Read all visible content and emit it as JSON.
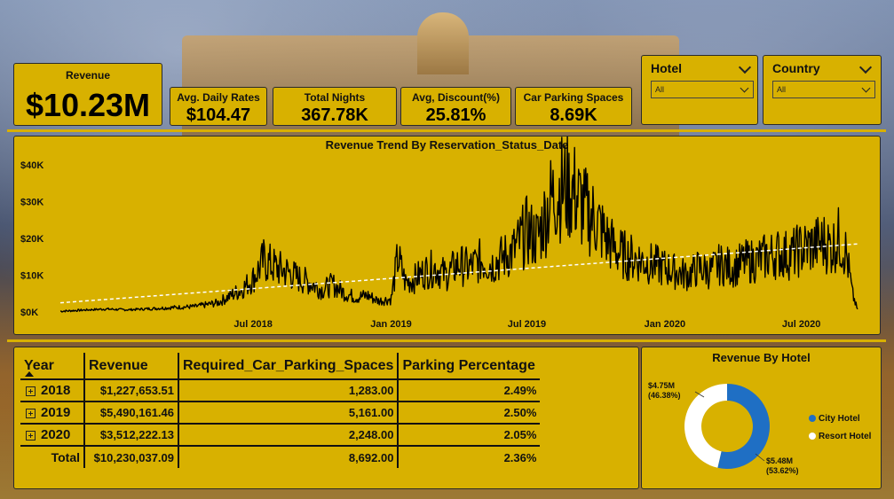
{
  "kpis": {
    "revenue": {
      "title": "Revenue",
      "value": "$10.23M"
    },
    "adr": {
      "title": "Avg. Daily Rates",
      "value": "$104.47"
    },
    "nights": {
      "title": "Total Nights",
      "value": "367.78K"
    },
    "discount": {
      "title": "Avg, Discount(%)",
      "value": "25.81%"
    },
    "parking": {
      "title": "Car Parking Spaces",
      "value": "8.69K"
    }
  },
  "slicers": {
    "hotel": {
      "label": "Hotel",
      "selected": "All"
    },
    "country": {
      "label": "Country",
      "selected": "All"
    }
  },
  "colors": {
    "panel": "#d8b100",
    "accent_gold": "#d9b000",
    "city_hotel": "#1f6fc4",
    "resort_hotel": "#ffffff",
    "line": "#000000"
  },
  "chart_data": [
    {
      "type": "line",
      "title": "Revenue Trend By Reservation_Status_Date",
      "xlabel": "",
      "ylabel": "",
      "x_ticks": [
        "Jul 2018",
        "Jan 2019",
        "Jul 2019",
        "Jan 2020",
        "Jul 2020"
      ],
      "y_ticks": [
        "$0K",
        "$10K",
        "$20K",
        "$30K",
        "$40K"
      ],
      "ylim": [
        0,
        40000
      ],
      "xlim": [
        "2017-10-17",
        "2020-09-14"
      ],
      "trend_line": {
        "style": "dashed",
        "color": "#ffffff",
        "start": 2500,
        "end": 18500
      },
      "series": [
        {
          "x": [
            "2017-10-17",
            "2017-11-15",
            "2017-12-15",
            "2018-01-15",
            "2018-02-15",
            "2018-03-15",
            "2018-04-15",
            "2018-05-15",
            "2018-06-01",
            "2018-06-15",
            "2018-07-01",
            "2018-07-15",
            "2018-08-01",
            "2018-08-15",
            "2018-09-01",
            "2018-09-15",
            "2018-10-01",
            "2018-10-15",
            "2018-11-01",
            "2018-11-15",
            "2018-12-01",
            "2018-12-15",
            "2019-01-01",
            "2019-01-10",
            "2019-01-20",
            "2019-02-01",
            "2019-02-15",
            "2019-03-01",
            "2019-03-15",
            "2019-04-01",
            "2019-04-15",
            "2019-05-01",
            "2019-05-15",
            "2019-06-01",
            "2019-06-15",
            "2019-07-01",
            "2019-07-15",
            "2019-08-01",
            "2019-08-15",
            "2019-09-01",
            "2019-09-15",
            "2019-10-01",
            "2019-10-15",
            "2019-11-01",
            "2019-11-15",
            "2019-12-01",
            "2019-12-15",
            "2020-01-01",
            "2020-01-15",
            "2020-02-01",
            "2020-02-15",
            "2020-03-01",
            "2020-03-15",
            "2020-04-01",
            "2020-04-15",
            "2020-05-01",
            "2020-05-15",
            "2020-06-01",
            "2020-06-15",
            "2020-07-01",
            "2020-07-15",
            "2020-08-01",
            "2020-08-10",
            "2020-08-20",
            "2020-08-30",
            "2020-09-07",
            "2020-09-14"
          ],
          "y": [
            200,
            500,
            800,
            600,
            900,
            1200,
            1500,
            2500,
            4500,
            6000,
            9000,
            14000,
            12000,
            11000,
            9000,
            8000,
            6000,
            7500,
            5000,
            4000,
            4500,
            3000,
            3500,
            15000,
            8000,
            9000,
            11000,
            12000,
            10000,
            13000,
            12000,
            14000,
            13000,
            15000,
            17000,
            22000,
            20000,
            30000,
            34000,
            33000,
            28000,
            25000,
            20000,
            16000,
            15000,
            14000,
            13000,
            12000,
            11000,
            10000,
            12000,
            11000,
            13000,
            12000,
            13500,
            14000,
            15000,
            16000,
            15500,
            17000,
            18000,
            19000,
            17500,
            20000,
            16000,
            5000,
            500
          ]
        }
      ]
    },
    {
      "type": "pie",
      "title": "Revenue By Hotel",
      "series": [
        {
          "name": "City Hotel",
          "value": 5.48,
          "label": "$5.48M",
          "pct": "(53.62%)"
        },
        {
          "name": "Resort Hotel",
          "value": 4.75,
          "label": "$4.75M",
          "pct": "(46.38%)"
        }
      ],
      "legend_placement": "right"
    }
  ],
  "table": {
    "headers": [
      "Year",
      "Revenue",
      "Required_Car_Parking_Spaces",
      "Parking Percentage"
    ],
    "rows": [
      {
        "year": "2018",
        "revenue": "$1,227,653.51",
        "parking": "1,283.00",
        "pct": "2.49%"
      },
      {
        "year": "2019",
        "revenue": "$5,490,161.46",
        "parking": "5,161.00",
        "pct": "2.50%"
      },
      {
        "year": "2020",
        "revenue": "$3,512,222.13",
        "parking": "2,248.00",
        "pct": "2.05%"
      }
    ],
    "total": {
      "label": "Total",
      "revenue": "$10,230,037.09",
      "parking": "8,692.00",
      "pct": "2.36%"
    }
  }
}
